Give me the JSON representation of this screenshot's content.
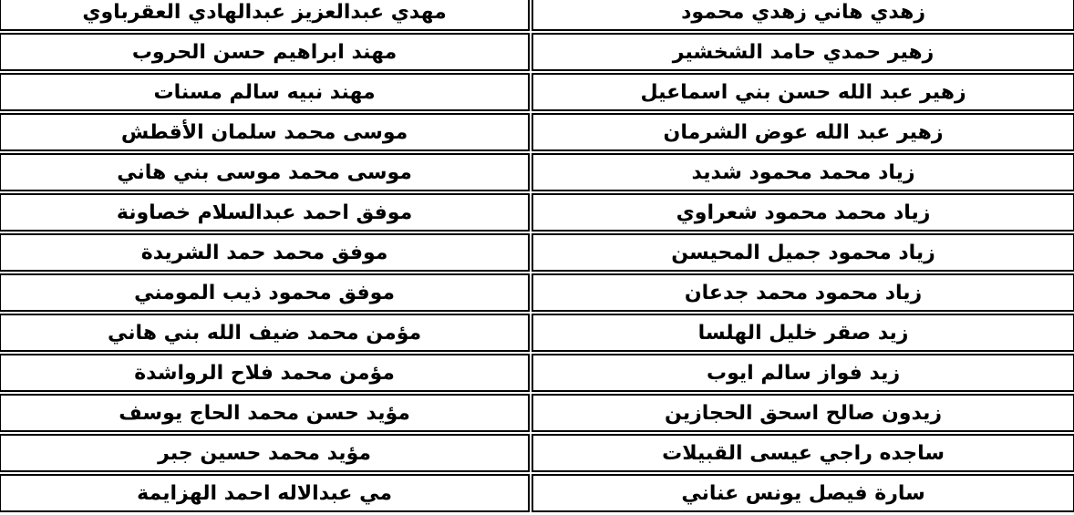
{
  "document": {
    "direction": "rtl",
    "language": "ar",
    "colors": {
      "background": "#ffffff",
      "cell_background": "#ffffff",
      "border": "#000000",
      "text": "#000000"
    },
    "table": {
      "description": "two-column list of Arabic personal names, RTL (first column is the rightmost)",
      "rows": [
        {
          "col1": "زهدي هاني زهدي محمود",
          "col2": "مهدي عبدالعزيز عبدالهادي العقرباوي"
        },
        {
          "col1": "زهير حمدي حامد الشخشير",
          "col2": "مهند ابراهيم حسن الحروب"
        },
        {
          "col1": "زهير عبد الله حسن بني اسماعيل",
          "col2": "مهند نبيه سالم مسنات"
        },
        {
          "col1": "زهير عبد الله عوض الشرمان",
          "col2": "موسى محمد سلمان الأقطش"
        },
        {
          "col1": "زياد محمد محمود شديد",
          "col2": "موسى محمد موسى بني هاني"
        },
        {
          "col1": "زياد محمد محمود شعراوي",
          "col2": "موفق احمد عبدالسلام خصاونة"
        },
        {
          "col1": "زياد محمود جميل المحيسن",
          "col2": "موفق محمد حمد الشريدة"
        },
        {
          "col1": "زياد محمود محمد جدعان",
          "col2": "موفق محمود ذيب المومني"
        },
        {
          "col1": "زيد صقر خليل الهلسا",
          "col2": "مؤمن محمد ضيف الله بني هاني"
        },
        {
          "col1": "زيد فواز سالم ايوب",
          "col2": "مؤمن محمد فلاح الرواشدة"
        },
        {
          "col1": "زيدون صالح اسحق الحجازين",
          "col2": "مؤيد حسن محمد الحاج يوسف"
        },
        {
          "col1": "ساجده راجي عيسى القبيلات",
          "col2": "مؤيد محمد حسين جبر"
        },
        {
          "col1": "سارة فيصل يونس عناني",
          "col2": "مي عبدالاله احمد الهزايمة"
        }
      ]
    }
  }
}
